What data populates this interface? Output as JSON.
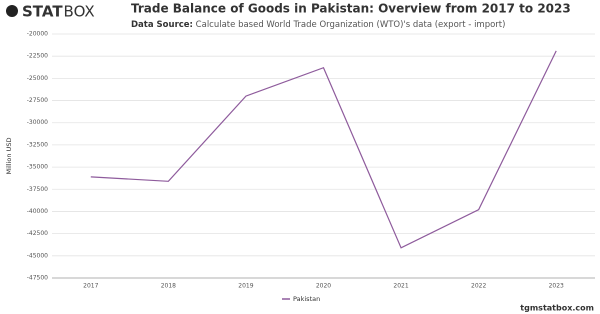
{
  "brand": {
    "bold": "STAT",
    "light": "BOX"
  },
  "footer": "tgmstatbox.com",
  "chart_data": {
    "type": "line",
    "title": "Trade Balance of Goods in Pakistan: Overview from 2017 to 2023",
    "source_label": "Data Source:",
    "source": "Calculate based World Trade Organization (WTO)'s data (export - import)",
    "y_label": "Million USD",
    "categories": [
      "2017",
      "2018",
      "2019",
      "2020",
      "2021",
      "2022",
      "2023"
    ],
    "series": [
      {
        "name": "Pakistan",
        "color": "#8e5b9c",
        "values": [
          -36100,
          -36600,
          -27000,
          -23800,
          -44100,
          -39800,
          -21900
        ]
      }
    ],
    "ylim": [
      -47500,
      -20000
    ],
    "yticks": [
      -47500,
      -45000,
      -42500,
      -40000,
      -37500,
      -35000,
      -32500,
      -30000,
      -27500,
      -25000,
      -22500,
      -20000
    ],
    "grid": true
  }
}
